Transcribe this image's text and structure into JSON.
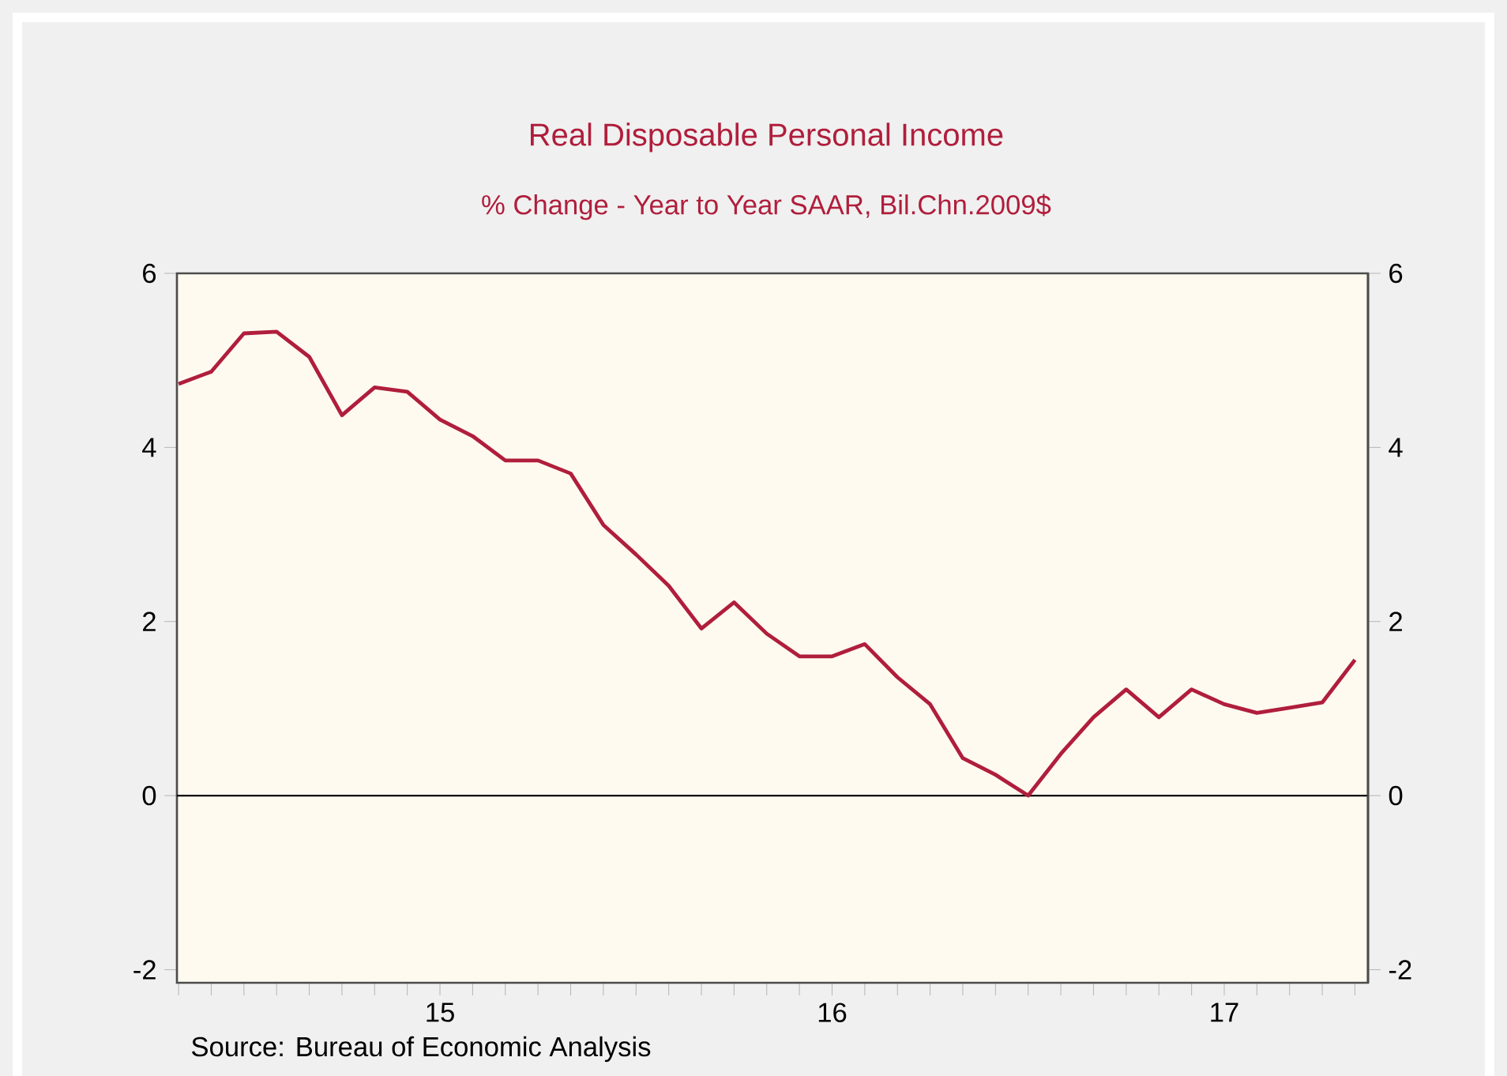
{
  "chart_data": {
    "type": "line",
    "title": "Real Disposable Personal Income",
    "subtitle": "% Change - Year to Year    SAAR, Bil.Chn.2009$",
    "annotations": [
      "Source:  Bureau of Economic Analysis"
    ],
    "categories": [
      null,
      null,
      null,
      null,
      null,
      null,
      null,
      null,
      "15",
      null,
      null,
      null,
      null,
      null,
      null,
      null,
      null,
      null,
      null,
      null,
      "16",
      null,
      null,
      null,
      null,
      null,
      null,
      null,
      null,
      null,
      null,
      null,
      "17",
      null,
      null,
      null,
      null
    ],
    "series": [
      {
        "color": "#b01e3c",
        "values": [
          4.73,
          4.87,
          5.31,
          5.33,
          5.04,
          4.37,
          4.69,
          4.64,
          4.32,
          4.13,
          3.85,
          3.85,
          3.7,
          3.11,
          2.77,
          2.41,
          1.92,
          2.22,
          1.86,
          1.6,
          1.6,
          1.74,
          1.36,
          1.05,
          0.43,
          0.24,
          0.0,
          0.48,
          0.9,
          1.22,
          0.9,
          1.22,
          1.05,
          0.95,
          1.01,
          1.07,
          1.56
        ]
      }
    ],
    "ylim": [
      -2.15,
      6
    ],
    "yticks": [
      -2,
      0,
      2,
      4,
      6
    ],
    "y2lim": [
      -2.15,
      6
    ],
    "y2ticks": [
      -2,
      0,
      2,
      4,
      6
    ],
    "ref_lines": [
      {
        "axis": "y",
        "value": 0,
        "color": "#000000"
      }
    ],
    "grid": false,
    "marker": "none",
    "line_style": "solid"
  }
}
